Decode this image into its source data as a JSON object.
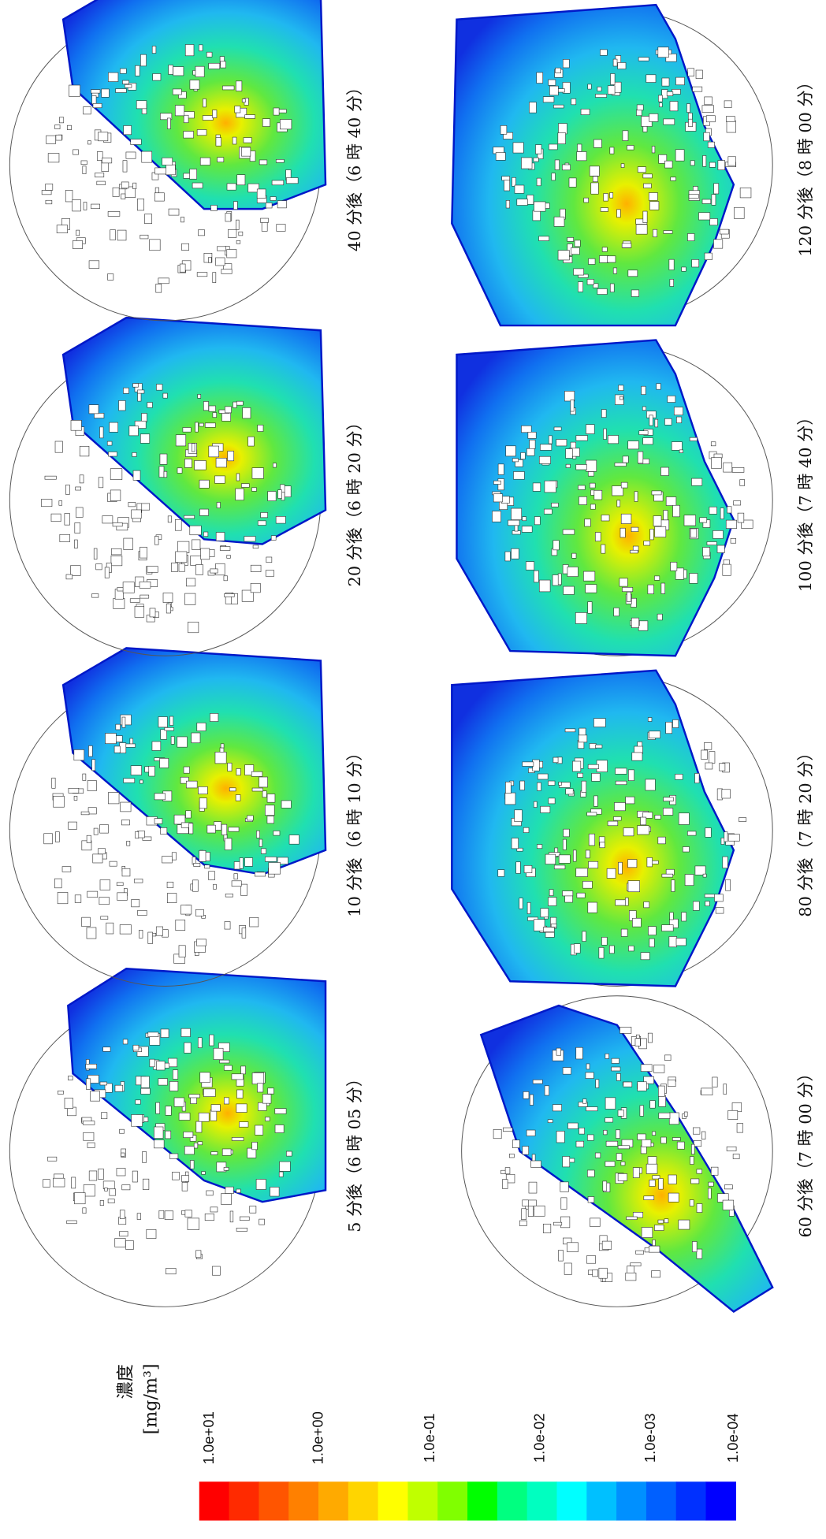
{
  "panels": [
    {
      "caption": "5 分後（6 時 05 分）"
    },
    {
      "caption": "10 分後（6 時 10 分）"
    },
    {
      "caption": "20 分後（6 時 20 分）"
    },
    {
      "caption": "40 分後（6 時 40 分）"
    },
    {
      "caption": "60 分後（7 時 00 分）"
    },
    {
      "caption": "80 分後（7 時 20 分）"
    },
    {
      "caption": "100 分後（7 時 40 分）"
    },
    {
      "caption": "120 分後（8 時 00 分）"
    }
  ],
  "colorbar": {
    "title": "濃度",
    "unit": "[mg/m³]",
    "ticks": [
      "1.0e+01",
      "1.0e+00",
      "1.0e-01",
      "1.0e-02",
      "1.0e-03",
      "1.0e-04"
    ]
  }
}
